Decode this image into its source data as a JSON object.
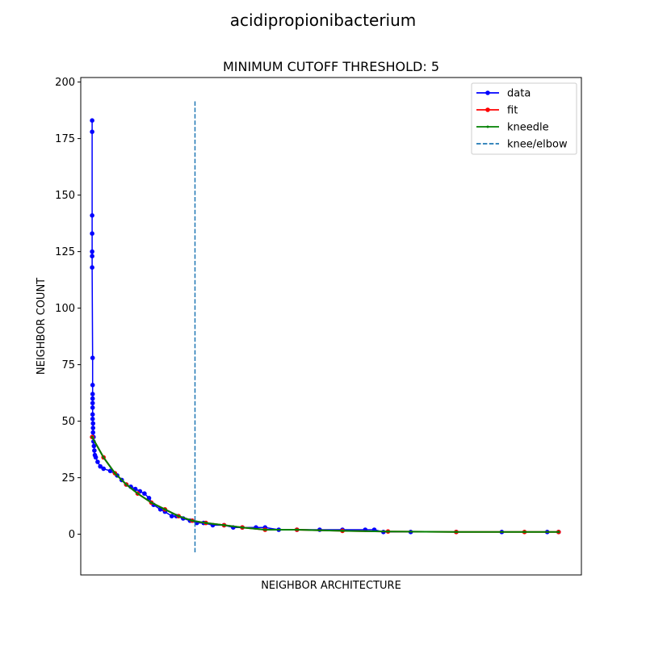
{
  "suptitle": "acidipropionibacterium",
  "chart_data": {
    "type": "line",
    "title": "MINIMUM CUTOFF THRESHOLD: 5",
    "xlabel": "NEIGHBOR ARCHITECTURE",
    "ylabel": "NEIGHBOR COUNT",
    "xlim": [
      -25,
      1075
    ],
    "ylim": [
      -18,
      202
    ],
    "x_ticks_shown": false,
    "y_ticks": [
      0,
      25,
      50,
      75,
      100,
      125,
      150,
      175,
      200
    ],
    "legend_position": "top-right",
    "series": [
      {
        "name": "data",
        "color": "#0000ff",
        "marker": "circle",
        "points": [
          [
            0,
            183
          ],
          [
            0,
            178
          ],
          [
            0,
            141
          ],
          [
            0,
            133
          ],
          [
            0,
            125
          ],
          [
            0,
            123
          ],
          [
            0,
            118
          ],
          [
            1,
            78
          ],
          [
            1,
            66
          ],
          [
            1,
            62
          ],
          [
            1,
            60
          ],
          [
            1,
            58
          ],
          [
            1,
            56
          ],
          [
            1,
            53
          ],
          [
            1,
            51
          ],
          [
            2,
            49
          ],
          [
            2,
            47
          ],
          [
            2,
            45
          ],
          [
            3,
            43
          ],
          [
            3,
            41
          ],
          [
            4,
            39
          ],
          [
            5,
            37
          ],
          [
            6,
            35
          ],
          [
            8,
            34
          ],
          [
            12,
            32
          ],
          [
            18,
            30
          ],
          [
            25,
            29
          ],
          [
            40,
            28
          ],
          [
            55,
            26
          ],
          [
            65,
            24
          ],
          [
            75,
            22
          ],
          [
            85,
            21
          ],
          [
            95,
            20
          ],
          [
            105,
            19
          ],
          [
            115,
            18
          ],
          [
            125,
            16
          ],
          [
            135,
            13
          ],
          [
            150,
            11
          ],
          [
            160,
            10
          ],
          [
            175,
            8
          ],
          [
            185,
            8
          ],
          [
            200,
            7
          ],
          [
            215,
            6
          ],
          [
            230,
            5
          ],
          [
            245,
            5
          ],
          [
            265,
            4
          ],
          [
            290,
            4
          ],
          [
            310,
            3
          ],
          [
            330,
            3
          ],
          [
            360,
            3
          ],
          [
            380,
            3
          ],
          [
            410,
            2
          ],
          [
            450,
            2
          ],
          [
            500,
            2
          ],
          [
            550,
            2
          ],
          [
            600,
            2
          ],
          [
            620,
            2
          ],
          [
            640,
            1
          ],
          [
            700,
            1
          ],
          [
            800,
            1
          ],
          [
            900,
            1
          ],
          [
            1000,
            1
          ],
          [
            1025,
            1
          ]
        ]
      },
      {
        "name": "fit",
        "color": "#ff0000",
        "marker": "circle",
        "points": [
          [
            0,
            43
          ],
          [
            25,
            34
          ],
          [
            50,
            27
          ],
          [
            75,
            22
          ],
          [
            100,
            18
          ],
          [
            130,
            14
          ],
          [
            160,
            11
          ],
          [
            190,
            8
          ],
          [
            220,
            6
          ],
          [
            250,
            5
          ],
          [
            290,
            4
          ],
          [
            330,
            3
          ],
          [
            380,
            2
          ],
          [
            450,
            2
          ],
          [
            550,
            1.5
          ],
          [
            650,
            1.2
          ],
          [
            800,
            1
          ],
          [
            950,
            1
          ],
          [
            1025,
            1
          ]
        ]
      },
      {
        "name": "kneedle",
        "color": "#008000",
        "marker": "point",
        "points": [
          [
            0,
            43
          ],
          [
            25,
            34
          ],
          [
            50,
            27
          ],
          [
            75,
            22
          ],
          [
            100,
            18
          ],
          [
            130,
            14
          ],
          [
            160,
            11
          ],
          [
            190,
            8
          ],
          [
            220,
            6
          ],
          [
            250,
            5
          ],
          [
            290,
            4
          ],
          [
            330,
            3
          ],
          [
            380,
            2
          ],
          [
            450,
            2
          ],
          [
            550,
            1.5
          ],
          [
            650,
            1.2
          ],
          [
            800,
            1
          ],
          [
            950,
            1
          ],
          [
            1025,
            1
          ]
        ]
      }
    ],
    "knee": {
      "name": "knee/elbow",
      "color": "#1f77b4",
      "x": 226,
      "y_range": [
        -8,
        192
      ]
    }
  }
}
